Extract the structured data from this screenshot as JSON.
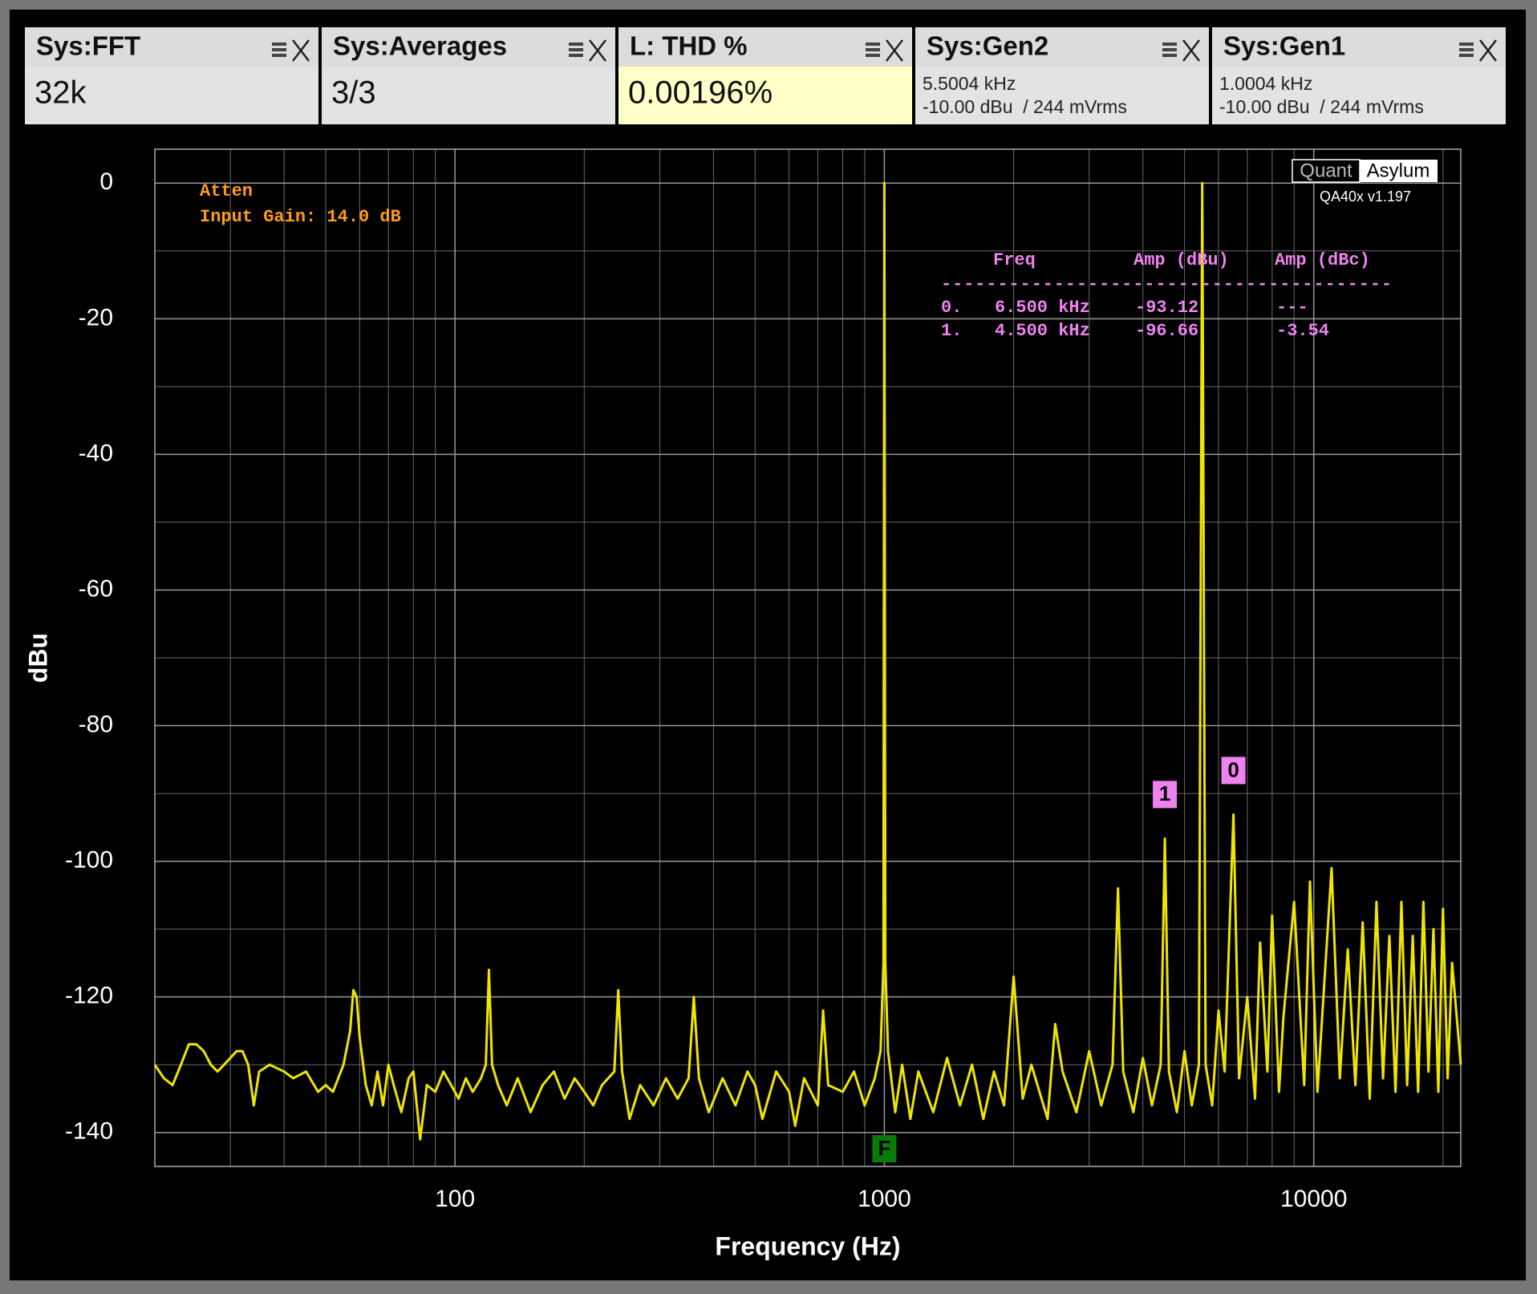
{
  "panels": [
    {
      "title": "Sys:FFT",
      "lines": [
        "32k"
      ]
    },
    {
      "title": "Sys:Averages",
      "lines": [
        "3/3"
      ]
    },
    {
      "title": "L: THD %",
      "lines": [
        "0.00196%"
      ],
      "background": "#ffffc8"
    },
    {
      "title": "Sys:Gen2",
      "lines": [
        "5.5004 kHz",
        "-10.00 dBu  / 244 mVrms"
      ]
    },
    {
      "title": "Sys:Gen1",
      "lines": [
        "1.0004 kHz",
        "-10.00 dBu  / 244 mVrms"
      ]
    }
  ],
  "chart_data": {
    "type": "line",
    "x_label": "Frequency (Hz)",
    "y_label": "dBu",
    "log_x": true,
    "grid": true,
    "color": "#f0e500",
    "xlim": [
      20,
      22000
    ],
    "ylim": [
      -145,
      5
    ],
    "xticks": [
      100,
      1000,
      10000
    ],
    "x_minor_grid": [
      20,
      30,
      40,
      50,
      60,
      70,
      80,
      90,
      200,
      300,
      400,
      500,
      600,
      700,
      800,
      900,
      2000,
      3000,
      4000,
      5000,
      6000,
      7000,
      8000,
      9000,
      20000
    ],
    "yticks": [
      0,
      -20,
      -40,
      -60,
      -80,
      -100,
      -120,
      -140
    ],
    "y_minor_grid": [
      -10,
      -30,
      -50,
      -70,
      -90,
      -110,
      -130
    ],
    "x": [
      20,
      21,
      22,
      23,
      24,
      25,
      26,
      27,
      28,
      29,
      31,
      32,
      33,
      34,
      35,
      37,
      40,
      42,
      45,
      48,
      50,
      52,
      55,
      57,
      58,
      59,
      60,
      62,
      64,
      66,
      68,
      70,
      72,
      75,
      78,
      80,
      83,
      86,
      90,
      94,
      98,
      102,
      106,
      110,
      115,
      118,
      120,
      122,
      126,
      132,
      140,
      150,
      160,
      170,
      180,
      190,
      200,
      210,
      220,
      235,
      240,
      245,
      255,
      270,
      290,
      310,
      330,
      350,
      360,
      370,
      390,
      420,
      450,
      480,
      500,
      520,
      560,
      600,
      620,
      650,
      700,
      720,
      740,
      800,
      850,
      900,
      950,
      980,
      995,
      1000,
      1005,
      1020,
      1060,
      1100,
      1150,
      1200,
      1300,
      1400,
      1500,
      1600,
      1700,
      1800,
      1900,
      2000,
      2100,
      2200,
      2400,
      2500,
      2600,
      2800,
      3000,
      3200,
      3400,
      3500,
      3600,
      3800,
      4000,
      4200,
      4400,
      4500,
      4600,
      4800,
      5000,
      5200,
      5400,
      5500,
      5600,
      5800,
      6000,
      6200,
      6500,
      6700,
      7000,
      7300,
      7500,
      7800,
      8000,
      8300,
      8500,
      9000,
      9500,
      9800,
      10200,
      11000,
      11500,
      12000,
      12500,
      13000,
      13500,
      14000,
      14500,
      15000,
      15500,
      16000,
      16500,
      17000,
      17500,
      18000,
      18500,
      19000,
      19500,
      20000,
      20500,
      21000,
      22000
    ],
    "values": [
      -130,
      -132,
      -133,
      -130,
      -127,
      -127,
      -128,
      -130,
      -131,
      -130,
      -128,
      -128,
      -130,
      -136,
      -131,
      -130,
      -131,
      -132,
      -131,
      -134,
      -133,
      -134,
      -130,
      -125,
      -119,
      -120,
      -126,
      -133,
      -136,
      -131,
      -136,
      -130,
      -133,
      -137,
      -132,
      -131,
      -141,
      -133,
      -134,
      -131,
      -133,
      -135,
      -132,
      -134,
      -132,
      -130,
      -116,
      -130,
      -133,
      -136,
      -132,
      -137,
      -133,
      -131,
      -135,
      -132,
      -134,
      -136,
      -133,
      -131,
      -119,
      -131,
      -138,
      -133,
      -136,
      -132,
      -135,
      -132,
      -120,
      -132,
      -137,
      -132,
      -136,
      -131,
      -133,
      -138,
      -131,
      -134,
      -139,
      -132,
      -136,
      -122,
      -133,
      -134,
      -131,
      -136,
      -132,
      -128,
      -115,
      0,
      -115,
      -128,
      -137,
      -130,
      -138,
      -131,
      -137,
      -129,
      -136,
      -130,
      -138,
      -131,
      -136,
      -117,
      -135,
      -130,
      -138,
      -124,
      -131,
      -137,
      -128,
      -136,
      -130,
      -104,
      -131,
      -137,
      -129,
      -136,
      -130,
      -96.66,
      -131,
      -137,
      -128,
      -136,
      -130,
      0,
      -130,
      -136,
      -122,
      -131,
      -93.12,
      -132,
      -120,
      -135,
      -112,
      -131,
      -108,
      -134,
      -123,
      -106,
      -133,
      -103,
      -134,
      -101,
      -132,
      -113,
      -133,
      -109,
      -135,
      -106,
      -132,
      -111,
      -134,
      -106,
      -133,
      -111,
      -134,
      -106,
      -131,
      -110,
      -134,
      -107,
      -132,
      -115,
      -130
    ],
    "markers": [
      {
        "label": "1",
        "x": 4500,
        "color": "#ee82ee"
      },
      {
        "label": "0",
        "x": 6500,
        "color": "#ee82ee"
      },
      {
        "label": "F",
        "x": 1000,
        "color": "#0a7a0a",
        "position": "bottom"
      }
    ],
    "annotations": [
      "Atten",
      "Input Gain: 14.0 dB"
    ],
    "logo": [
      "Quant",
      "Asylum"
    ],
    "version": "QA40x v1.197",
    "peaks_table": {
      "headers": [
        "Freq",
        "Amp (dBu)",
        "Amp (dBc)"
      ],
      "rule": "----------------------------------------",
      "rows": [
        [
          "0.",
          "6.500 kHz",
          "-93.12",
          "---"
        ],
        [
          "1.",
          "4.500 kHz",
          "-96.66",
          "-3.54"
        ]
      ]
    }
  }
}
